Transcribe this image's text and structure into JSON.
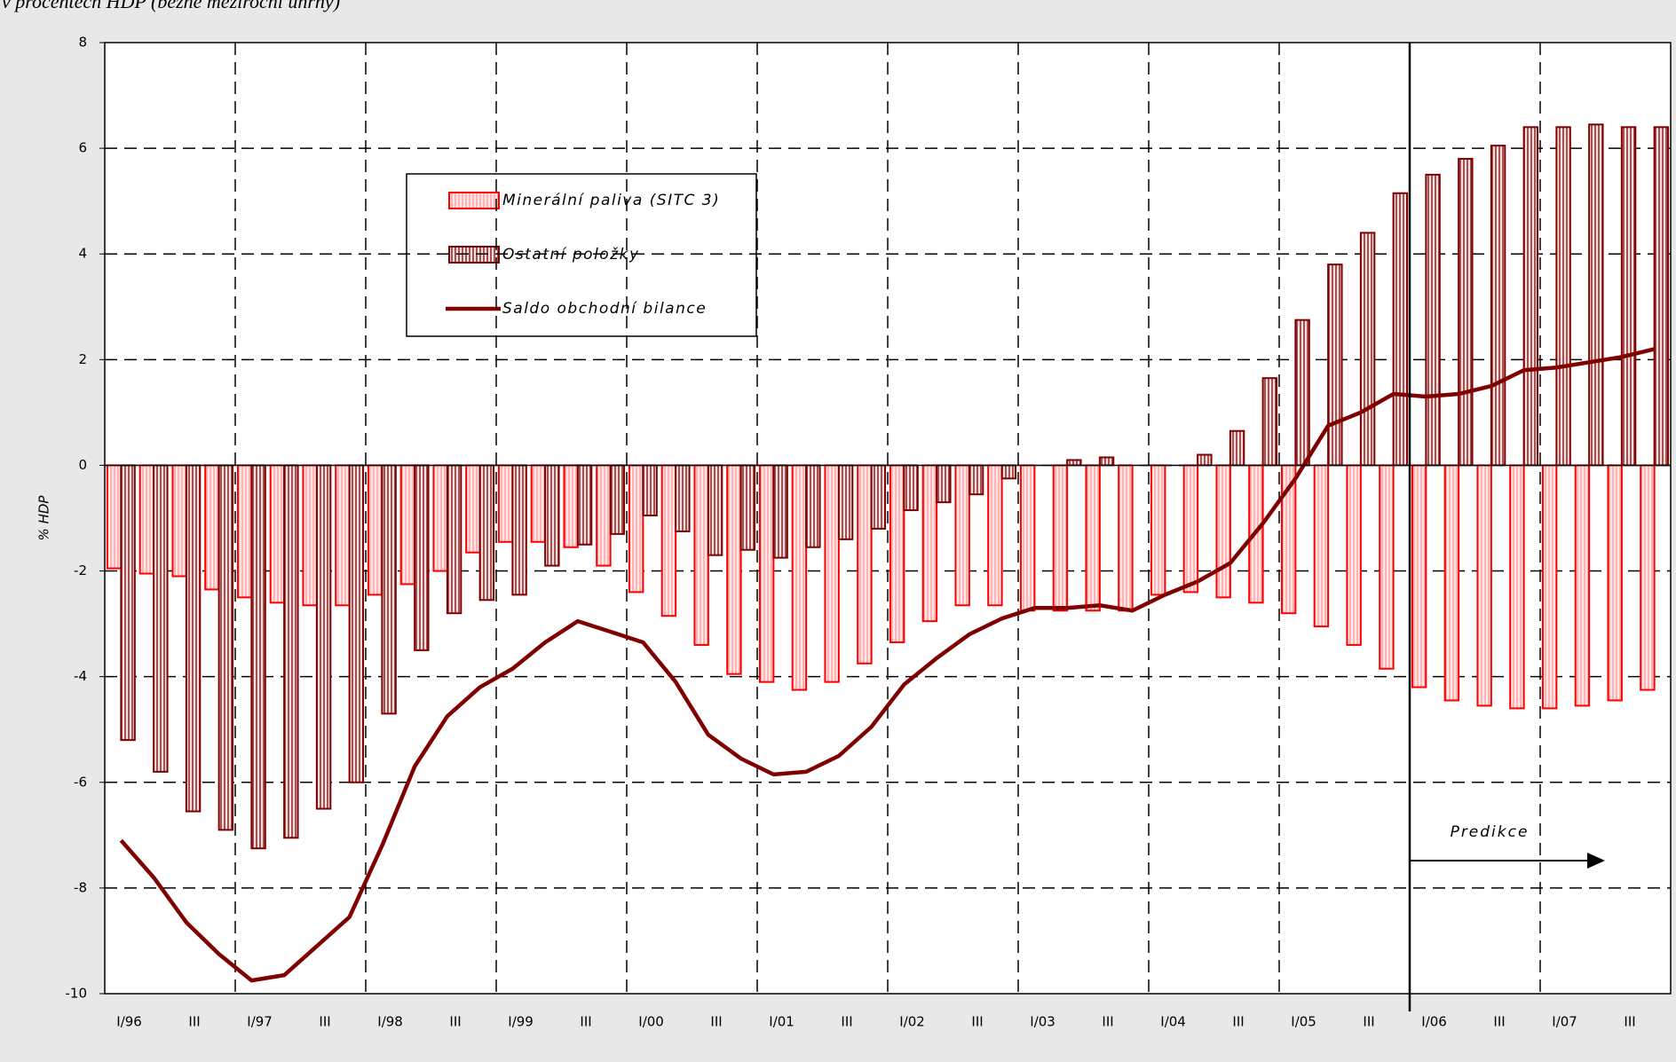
{
  "chart_data": {
    "type": "bar-line",
    "title": "v procentech HDP (běžné meziroční úhrny)",
    "y_label": "% HDP",
    "annotation": "Predikce",
    "categories": [
      "I/96",
      null,
      "III",
      null,
      "I/97",
      null,
      "III",
      null,
      "I/98",
      null,
      "III",
      null,
      "I/99",
      null,
      "III",
      null,
      "I/00",
      null,
      "III",
      null,
      "I/01",
      null,
      "III",
      null,
      "I/02",
      null,
      "III",
      null,
      "I/03",
      null,
      "III",
      null,
      "I/04",
      null,
      "III",
      null,
      "I/05",
      null,
      "III",
      null,
      "I/06",
      null,
      "III",
      null,
      "I/07",
      null,
      "III",
      null
    ],
    "series": [
      {
        "name": "Minerální paliva (SITC 3)",
        "kind": "bar",
        "color": "#ff0000",
        "values": [
          -1.95,
          -2.05,
          -2.1,
          -2.35,
          -2.5,
          -2.6,
          -2.65,
          -2.65,
          -2.45,
          -2.25,
          -2.0,
          -1.65,
          -1.45,
          -1.45,
          -1.55,
          -1.9,
          -2.4,
          -2.85,
          -3.4,
          -3.95,
          -4.1,
          -4.25,
          -4.1,
          -3.75,
          -3.35,
          -2.95,
          -2.65,
          -2.65,
          -2.75,
          -2.75,
          -2.75,
          -2.75,
          -2.45,
          -2.4,
          -2.5,
          -2.6,
          -2.8,
          -3.05,
          -3.4,
          -3.85,
          -4.2,
          -4.45,
          -4.55,
          -4.6,
          -4.6,
          -4.55,
          -4.45,
          -4.25
        ]
      },
      {
        "name": "Ostatní položky",
        "kind": "bar",
        "color": "#800000",
        "values": [
          -5.2,
          -5.8,
          -6.55,
          -6.9,
          -7.25,
          -7.05,
          -6.5,
          -6.0,
          -4.7,
          -3.5,
          -2.8,
          -2.55,
          -2.45,
          -1.9,
          -1.5,
          -1.3,
          -0.95,
          -1.25,
          -1.7,
          -1.6,
          -1.75,
          -1.55,
          -1.4,
          -1.2,
          -0.85,
          -0.7,
          -0.55,
          -0.25,
          0.0,
          0.1,
          0.15,
          0.0,
          0.0,
          0.2,
          0.65,
          1.65,
          2.75,
          3.8,
          4.4,
          5.15,
          5.5,
          5.8,
          6.05,
          6.4,
          6.4,
          6.45,
          6.4,
          6.4
        ]
      },
      {
        "name": "Saldo obchodní bilance",
        "kind": "line",
        "color": "#800000",
        "values": [
          -7.1,
          -7.8,
          -8.65,
          -9.25,
          -9.75,
          -9.65,
          -9.1,
          -8.55,
          -7.2,
          -5.7,
          -4.75,
          -4.2,
          -3.85,
          -3.35,
          -2.95,
          -3.15,
          -3.35,
          -4.1,
          -5.1,
          -5.55,
          -5.85,
          -5.8,
          -5.5,
          -4.95,
          -4.15,
          -3.65,
          -3.2,
          -2.9,
          -2.7,
          -2.7,
          -2.65,
          -2.75,
          -2.45,
          -2.2,
          -1.85,
          -1.1,
          -0.25,
          0.75,
          1.0,
          1.35,
          1.3,
          1.35,
          1.5,
          1.8,
          1.85,
          1.95,
          2.05,
          2.2
        ]
      }
    ],
    "forecast_start_index": 40,
    "ylim": [
      -10,
      8
    ],
    "yticks": [
      -10,
      -8,
      -6,
      -4,
      -2,
      0,
      2,
      4,
      6,
      8
    ],
    "grid": true
  }
}
